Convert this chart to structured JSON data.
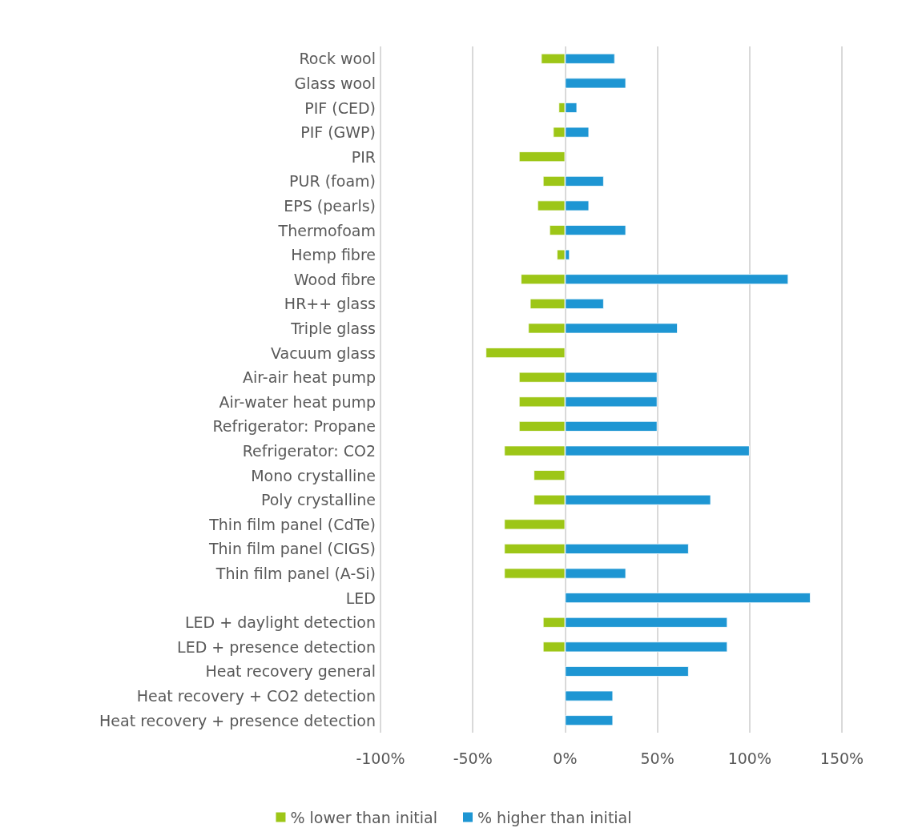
{
  "chart_data": {
    "type": "bar",
    "orientation": "horizontal",
    "categories": [
      "Rock wool",
      "Glass wool",
      "PIF (CED)",
      "PIF (GWP)",
      "PIR",
      "PUR (foam)",
      "EPS (pearls)",
      "Thermofoam",
      "Hemp fibre",
      "Wood fibre",
      "HR++ glass",
      "Triple glass",
      "Vacuum glass",
      "Air-air heat pump",
      "Air-water heat pump",
      "Refrigerator: Propane",
      "Refrigerator: CO2",
      "Mono crystalline",
      "Poly crystalline",
      "Thin film panel (CdTe)",
      "Thin film panel (CIGS)",
      "Thin film panel (A-Si)",
      "LED",
      "LED + daylight detection",
      "LED + presence detection",
      "Heat recovery general",
      "Heat recovery + CO2 detection",
      "Heat recovery + presence detection"
    ],
    "series": [
      {
        "name": "% lower than initial",
        "color": "#9dc617",
        "values": [
          -13,
          null,
          -3.5,
          -6.5,
          -25,
          -12,
          -15,
          -8.5,
          -4.5,
          -24,
          -19,
          -20,
          -43,
          -25,
          -25,
          -25,
          -33,
          -17,
          -17,
          -33,
          -33,
          -33,
          null,
          -12,
          -12,
          null,
          null,
          null
        ]
      },
      {
        "name": "% higher than initial",
        "color": "#1e96d3",
        "values": [
          27,
          33,
          6.5,
          13,
          null,
          21,
          13,
          33,
          2.5,
          121,
          21,
          61,
          null,
          50,
          50,
          50,
          100,
          null,
          79,
          null,
          67,
          33,
          133,
          88,
          88,
          67,
          26,
          26
        ]
      }
    ],
    "xlim": [
      -100,
      150
    ],
    "xticks": [
      {
        "value": -100,
        "label": "-100%"
      },
      {
        "value": -50,
        "label": "-50%"
      },
      {
        "value": 0,
        "label": "0%"
      },
      {
        "value": 50,
        "label": "50%"
      },
      {
        "value": 100,
        "label": "100%"
      },
      {
        "value": 150,
        "label": "150%"
      }
    ],
    "grid": "x",
    "legend": "bottom",
    "stacked": true
  }
}
